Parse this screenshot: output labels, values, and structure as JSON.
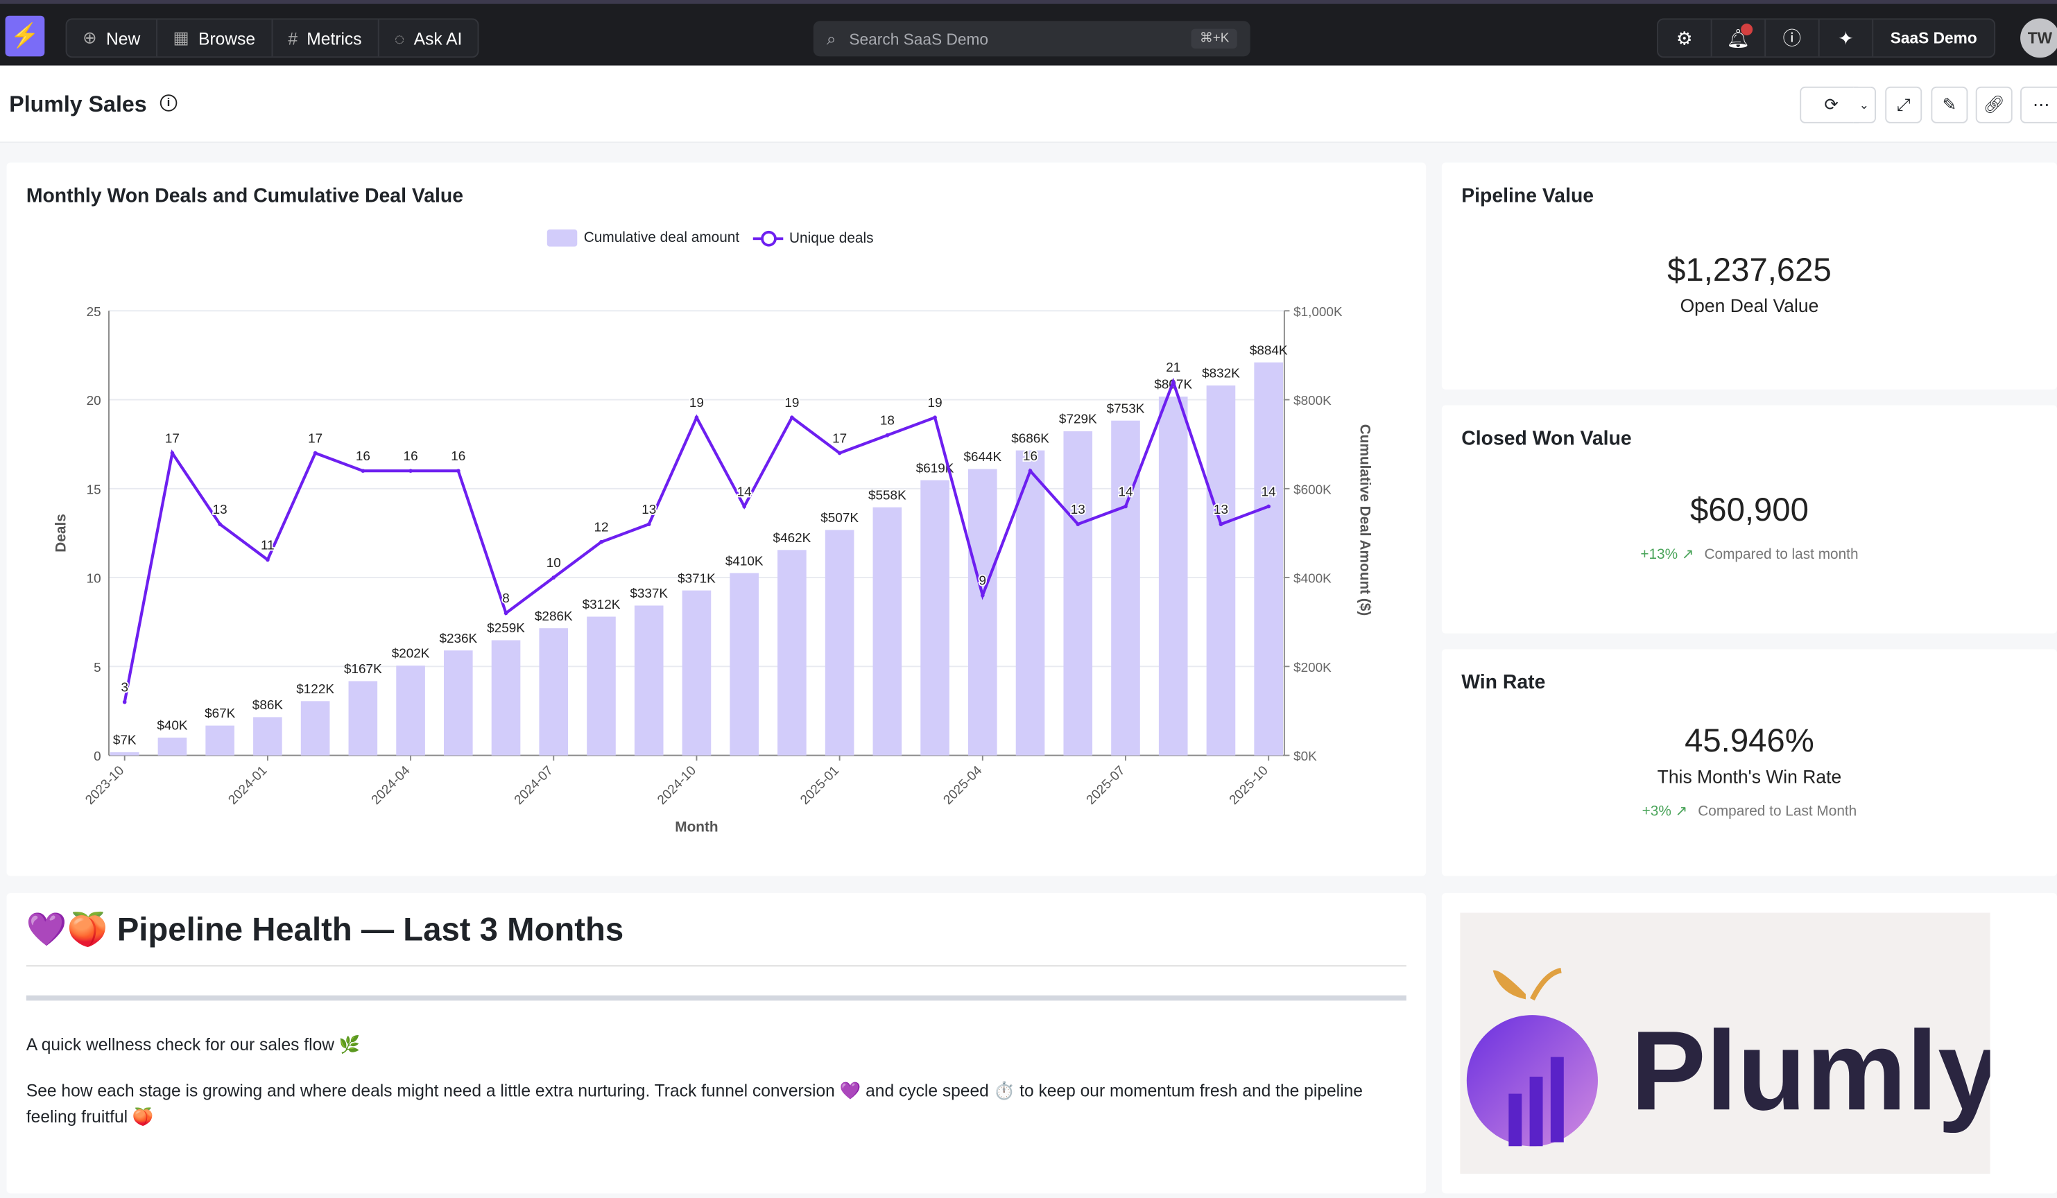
{
  "topbar": {
    "nav": [
      {
        "label": "New",
        "icon": "plus-circle-icon"
      },
      {
        "label": "Browse",
        "icon": "grid-icon"
      },
      {
        "label": "Metrics",
        "icon": "hash-icon"
      },
      {
        "label": "Ask AI",
        "icon": "chat-sparkle-icon"
      }
    ],
    "search_placeholder": "Search SaaS Demo",
    "search_shortcut": "⌘+K",
    "workspace": "SaaS Demo",
    "avatar": "TW"
  },
  "page": {
    "title": "Plumly Sales"
  },
  "chart_card": {
    "title": "Monthly Won Deals and Cumulative Deal Value"
  },
  "chart_data": {
    "type": "bar+line",
    "title": "Monthly Won Deals and Cumulative Deal Value",
    "xlabel": "Month",
    "ylabel": "Deals",
    "y2label": "Cumulative Deal Amount ($)",
    "ylim": [
      0,
      25
    ],
    "y2lim": [
      0,
      1000000
    ],
    "yticks": [
      "0",
      "5",
      "10",
      "15",
      "20",
      "25"
    ],
    "y2ticks": [
      "$0K",
      "$200K",
      "$400K",
      "$600K",
      "$800K",
      "$1,000K"
    ],
    "xticks": [
      "2023-10",
      "2024-01",
      "2024-04",
      "2024-07",
      "2024-10",
      "2025-01",
      "2025-04",
      "2025-07",
      "2025-10"
    ],
    "legend": "top",
    "grid": true,
    "categories": [
      "2023-10",
      "2023-11",
      "2023-12",
      "2024-01",
      "2024-02",
      "2024-03",
      "2024-04",
      "2024-05",
      "2024-06",
      "2024-07",
      "2024-08",
      "2024-09",
      "2024-10",
      "2024-11",
      "2024-12",
      "2025-01",
      "2025-02",
      "2025-03",
      "2025-04",
      "2025-05",
      "2025-06",
      "2025-07",
      "2025-08",
      "2025-09",
      "2025-10"
    ],
    "series": [
      {
        "name": "Cumulative deal amount",
        "type": "bar",
        "color": "#d2ccfa",
        "values": [
          7000,
          40000,
          67000,
          86000,
          122000,
          167000,
          202000,
          236000,
          259000,
          286000,
          312000,
          337000,
          371000,
          410000,
          462000,
          507000,
          558000,
          619000,
          644000,
          686000,
          729000,
          753000,
          807000,
          832000,
          884000
        ],
        "labels": [
          "$7K",
          "$40K",
          "$67K",
          "$86K",
          "$122K",
          "$167K",
          "$202K",
          "$236K",
          "$259K",
          "$286K",
          "$312K",
          "$337K",
          "$371K",
          "$410K",
          "$462K",
          "$507K",
          "$558K",
          "$619K",
          "$644K",
          "$686K",
          "$729K",
          "$753K",
          "$807K",
          "$832K",
          "$884K"
        ]
      },
      {
        "name": "Unique deals",
        "type": "line",
        "color": "#6d1ff0",
        "values": [
          3,
          17,
          13,
          11,
          17,
          16,
          16,
          16,
          8,
          10,
          12,
          13,
          19,
          14,
          19,
          17,
          18,
          19,
          9,
          16,
          13,
          14,
          21,
          13,
          14
        ]
      }
    ]
  },
  "kpis": {
    "pipeline": {
      "title": "Pipeline Value",
      "value": "$1,237,625",
      "label": "Open Deal Value"
    },
    "closed": {
      "title": "Closed Won Value",
      "value": "$60,900",
      "change": "+13% ↗",
      "compare": "Compared to last month"
    },
    "winrate": {
      "title": "Win Rate",
      "value": "45.946%",
      "label": "This Month's Win Rate",
      "change": "+3% ↗",
      "compare": "Compared to Last Month"
    }
  },
  "text_card": {
    "heading": "💜🍑 Pipeline Health — Last 3 Months",
    "p1": "A quick wellness check for our sales flow 🌿",
    "p2": "See how each stage is growing and where deals might need a little extra nurturing. Track funnel conversion 💜 and cycle speed ⏱️ to keep our momentum fresh and the pipeline feeling fruitful 🍑"
  },
  "logo_card": {
    "wordmark": "Plumly"
  },
  "colors": {
    "accent": "#7a6cf7",
    "bar": "#d2ccfa",
    "line": "#6d1ff0",
    "positive": "#4aa45a"
  }
}
